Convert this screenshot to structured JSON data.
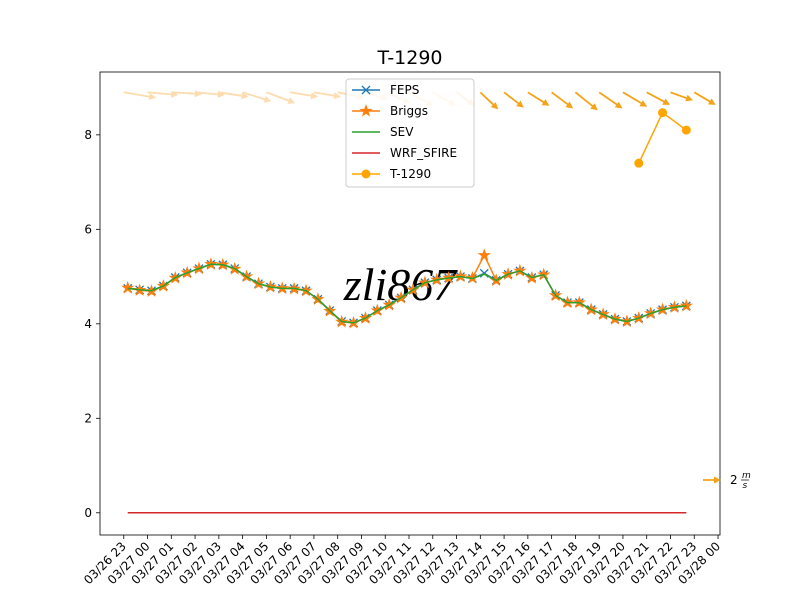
{
  "chart_data": {
    "type": "line",
    "title": "T-1290",
    "watermark": "zli867",
    "xlim": [
      "03/26 22:00",
      "03/28 00:05"
    ],
    "xticks": [
      "03/26 23",
      "03/27 00",
      "03/27 01",
      "03/27 02",
      "03/27 03",
      "03/27 04",
      "03/27 05",
      "03/27 06",
      "03/27 07",
      "03/27 08",
      "03/27 09",
      "03/27 10",
      "03/27 11",
      "03/27 12",
      "03/27 13",
      "03/27 14",
      "03/27 15",
      "03/27 16",
      "03/27 17",
      "03/27 18",
      "03/27 19",
      "03/27 20",
      "03/27 21",
      "03/27 22",
      "03/27 23",
      "03/28 00"
    ],
    "ylim": [
      -0.47,
      9.33
    ],
    "yticks": [
      0,
      2,
      4,
      6,
      8
    ],
    "grid": false,
    "legend": "upper center",
    "x": [
      "03/26 23:10",
      "03/26 23:40",
      "03/27 00:10",
      "03/27 00:40",
      "03/27 01:10",
      "03/27 01:40",
      "03/27 02:10",
      "03/27 02:40",
      "03/27 03:10",
      "03/27 03:40",
      "03/27 04:10",
      "03/27 04:40",
      "03/27 05:10",
      "03/27 05:40",
      "03/27 06:10",
      "03/27 06:40",
      "03/27 07:10",
      "03/27 07:40",
      "03/27 08:10",
      "03/27 08:40",
      "03/27 09:10",
      "03/27 09:40",
      "03/27 10:10",
      "03/27 10:40",
      "03/27 11:10",
      "03/27 11:40",
      "03/27 12:10",
      "03/27 12:40",
      "03/27 13:10",
      "03/27 13:40",
      "03/27 14:10",
      "03/27 14:40",
      "03/27 15:10",
      "03/27 15:40",
      "03/27 16:10",
      "03/27 16:40",
      "03/27 17:10",
      "03/27 17:40",
      "03/27 18:10",
      "03/27 18:40",
      "03/27 19:10",
      "03/27 19:40",
      "03/27 20:10",
      "03/27 20:40",
      "03/27 21:10",
      "03/27 21:40",
      "03/27 22:10",
      "03/27 22:40"
    ],
    "series": [
      {
        "name": "FEPS",
        "color": "#1f77b4",
        "marker": "x",
        "values": [
          4.75,
          4.72,
          4.7,
          4.8,
          4.98,
          5.08,
          5.17,
          5.26,
          5.25,
          5.17,
          5.0,
          4.85,
          4.78,
          4.75,
          4.75,
          4.7,
          4.52,
          4.28,
          4.05,
          4.02,
          4.12,
          4.28,
          4.4,
          4.55,
          4.72,
          4.87,
          4.93,
          4.97,
          5.0,
          4.96,
          5.07,
          4.92,
          5.05,
          5.12,
          4.98,
          5.04,
          4.6,
          4.45,
          4.45,
          4.3,
          4.2,
          4.1,
          4.05,
          4.12,
          4.22,
          4.3,
          4.35,
          4.38
        ]
      },
      {
        "name": "Briggs",
        "color": "#ff7f0e",
        "marker": "*",
        "values": [
          4.76,
          4.71,
          4.69,
          4.8,
          4.97,
          5.08,
          5.17,
          5.26,
          5.25,
          5.16,
          5.0,
          4.85,
          4.78,
          4.75,
          4.74,
          4.7,
          4.52,
          4.27,
          4.04,
          4.02,
          4.12,
          4.28,
          4.4,
          4.55,
          4.72,
          4.87,
          4.93,
          4.97,
          5.0,
          4.97,
          5.45,
          4.92,
          5.05,
          5.12,
          4.97,
          5.04,
          4.6,
          4.45,
          4.45,
          4.3,
          4.2,
          4.1,
          4.05,
          4.12,
          4.22,
          4.3,
          4.35,
          4.38
        ]
      },
      {
        "name": "SEV",
        "color": "#2ca02c",
        "values": [
          4.75,
          4.72,
          4.7,
          4.8,
          4.98,
          5.08,
          5.17,
          5.26,
          5.25,
          5.17,
          5.0,
          4.85,
          4.78,
          4.75,
          4.75,
          4.7,
          4.52,
          4.28,
          4.05,
          4.02,
          4.12,
          4.28,
          4.4,
          4.55,
          4.72,
          4.87,
          4.93,
          4.97,
          5.0,
          4.96,
          5.05,
          4.92,
          5.05,
          5.12,
          4.98,
          5.04,
          4.6,
          4.45,
          4.45,
          4.3,
          4.2,
          4.1,
          4.05,
          4.12,
          4.22,
          4.3,
          4.35,
          4.38
        ]
      },
      {
        "name": "WRF_SFIRE",
        "color": "#d62728",
        "values": [
          0,
          0,
          0,
          0,
          0,
          0,
          0,
          0,
          0,
          0,
          0,
          0,
          0,
          0,
          0,
          0,
          0,
          0,
          0,
          0,
          0,
          0,
          0,
          0,
          0,
          0,
          0,
          0,
          0,
          0,
          0,
          0,
          0,
          0,
          0,
          0,
          0,
          0,
          0,
          0,
          0,
          0,
          0,
          0,
          0,
          0,
          0,
          0
        ]
      },
      {
        "name": "T-1290",
        "color": "#ffa500",
        "marker": "o",
        "x": [
          "03/27 20:40",
          "03/27 21:40",
          "03/27 22:40"
        ],
        "values": [
          7.4,
          8.47,
          8.1
        ]
      }
    ],
    "quiver": {
      "y": 8.9,
      "x": [
        "03/26 23:00",
        "03/27 00:00",
        "03/27 01:00",
        "03/27 02:00",
        "03/27 03:00",
        "03/27 04:00",
        "03/27 05:00",
        "03/27 06:00",
        "03/27 07:00",
        "03/27 08:00",
        "03/27 09:00",
        "03/27 10:00",
        "03/27 11:00",
        "03/27 12:00",
        "03/27 13:00",
        "03/27 14:00",
        "03/27 15:00",
        "03/27 16:00",
        "03/27 17:00",
        "03/27 18:00",
        "03/27 19:00",
        "03/27 20:00",
        "03/27 21:00",
        "03/27 22:00",
        "03/27 23:00"
      ],
      "u": [
        3.6,
        3.4,
        3.4,
        3.3,
        3.3,
        3.2,
        3.2,
        3.1,
        3.0,
        2.9,
        2.9,
        2.8,
        2.7,
        2.6,
        2.0,
        2.0,
        2.2,
        2.4,
        2.4,
        2.5,
        2.6,
        2.7,
        2.6,
        2.5,
        2.4
      ],
      "v": [
        -0.6,
        -0.3,
        -0.2,
        -0.3,
        -0.5,
        -1.0,
        -1.2,
        -0.5,
        -0.5,
        -0.6,
        -0.7,
        -1.2,
        -1.5,
        -1.5,
        -1.5,
        -1.9,
        -1.7,
        -1.5,
        -1.8,
        -2.0,
        -1.8,
        -1.6,
        -1.4,
        -0.9,
        -1.4
      ],
      "colors": [
        "#fddcb0",
        "#fddcb0",
        "#fddcb0",
        "#fddcb0",
        "#fddcb0",
        "#fddcb0",
        "#fddcb0",
        "#fddcb0",
        "#fddcb0",
        "#fddcb0",
        "#fddcb0",
        "#fddcb0",
        "#fddcb0",
        "#fddcb0",
        "#fbd39a",
        "#f5a31a",
        "#f5a31a",
        "#f5a31a",
        "#f5a31a",
        "#f5a31a",
        "#f5a31a",
        "#f5a31a",
        "#f5a31a",
        "#f5a31a",
        "#f5a31a"
      ],
      "key_value": 2,
      "key_color": "#f5a31a",
      "key_unit": {
        "num": "m",
        "den": "s"
      }
    }
  }
}
